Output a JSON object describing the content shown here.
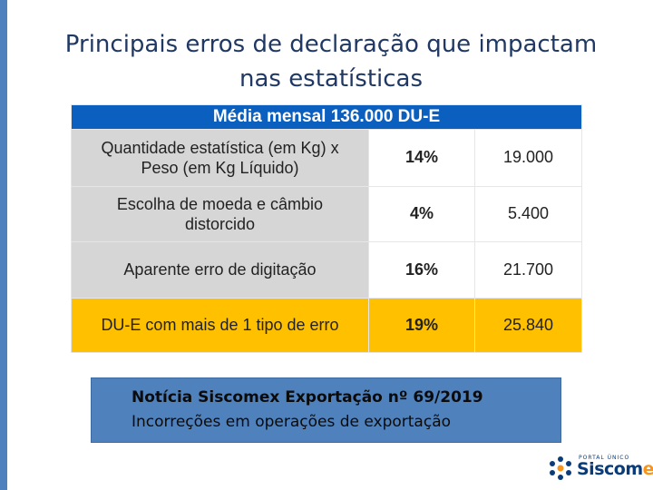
{
  "slide": {
    "title_line1": "Principais erros de declaração que impactam",
    "title_line2": "nas estatísticas"
  },
  "table": {
    "header": "Média mensal 136.000 DU-E",
    "rows": [
      {
        "label_line1": "Quantidade estatística (em Kg) x",
        "label_line2": "Peso (em Kg Líquido)",
        "percent": "14%",
        "value": "19.000"
      },
      {
        "label_line1": "Escolha de moeda e câmbio",
        "label_line2": "distorcido",
        "percent": "4%",
        "value": "5.400"
      },
      {
        "label_line1": "Aparente erro de digitação",
        "label_line2": "",
        "percent": "16%",
        "value": "21.700"
      },
      {
        "label_line1": "DU-E com mais de 1 tipo de erro",
        "label_line2": "",
        "percent": "19%",
        "value": "25.840"
      }
    ]
  },
  "news": {
    "line1": "Notícia Siscomex Exportação nº 69/2019",
    "line2": "Incorreções em operações de exportação"
  },
  "logo": {
    "portal_text": "PORTAL ÚNICO",
    "word_part1": "Siscom",
    "word_part2": "ex",
    "icon": "siscomex-logo-icon"
  },
  "colors": {
    "accent_bar": "#4f81bd",
    "title_text": "#1f3864",
    "table_header": "#0b5fbf",
    "row_gray": "#d6d6d6",
    "row_highlight": "#ffc000",
    "news_box": "#4f81bd",
    "logo_blue": "#0b3c7a",
    "logo_orange": "#f7941d"
  }
}
